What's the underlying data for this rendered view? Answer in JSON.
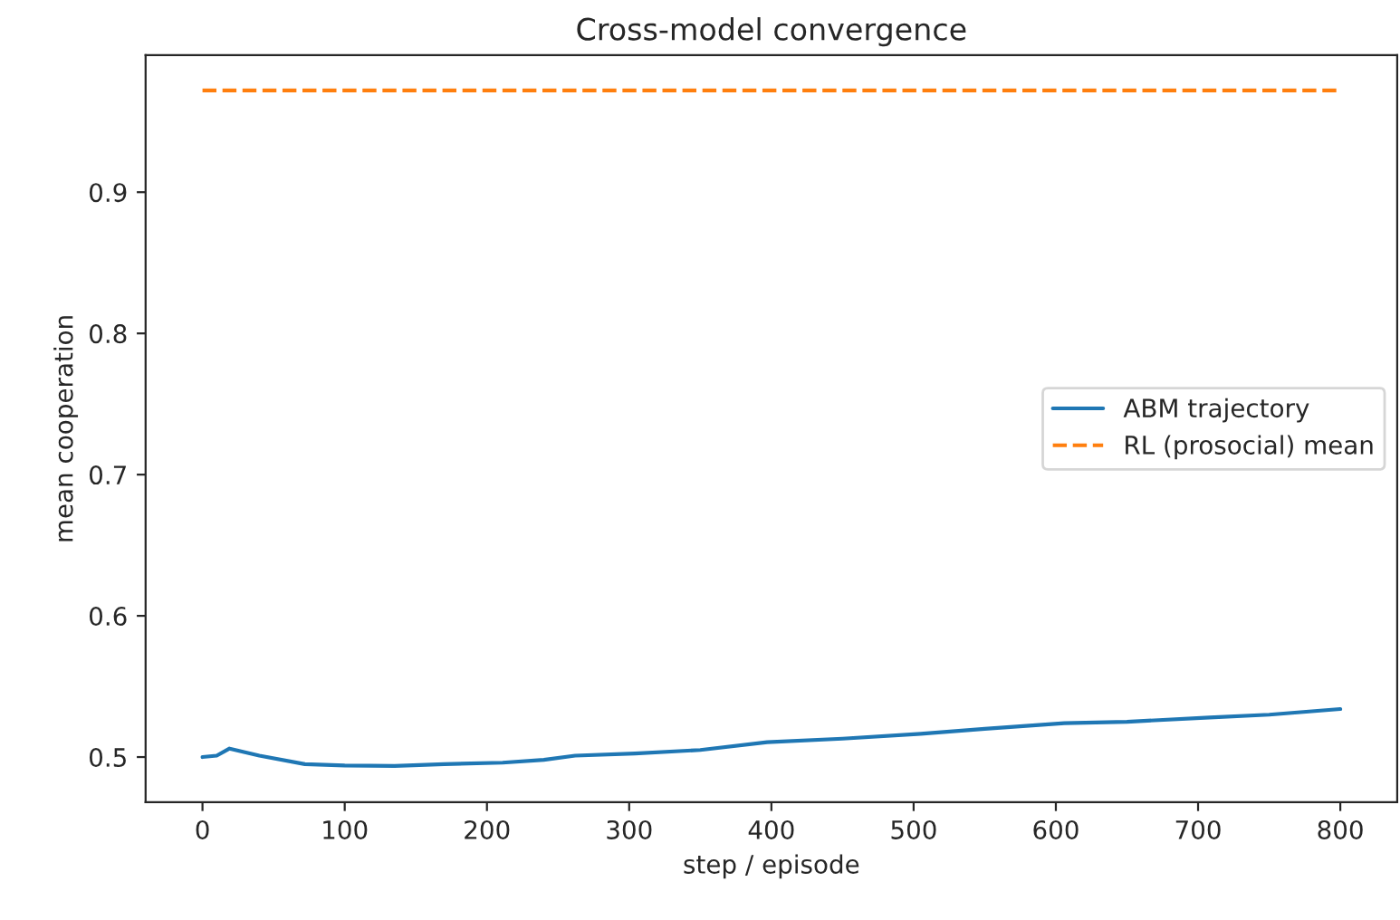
{
  "chart_data": {
    "type": "line",
    "title": "Cross-model convergence",
    "xlabel": "step / episode",
    "ylabel": "mean cooperation",
    "series": [
      {
        "name": "ABM trajectory",
        "color": "#1f77b4",
        "line_style": "solid",
        "x": [
          0,
          10,
          19,
          40,
          72,
          100,
          135,
          170,
          211,
          240,
          262,
          304,
          350,
          397,
          450,
          505,
          550,
          606,
          650,
          708,
          750,
          800
        ],
        "values": [
          0.5,
          0.501,
          0.506,
          0.501,
          0.495,
          0.494,
          0.4937,
          0.495,
          0.496,
          0.498,
          0.501,
          0.5025,
          0.505,
          0.5105,
          0.513,
          0.5165,
          0.52,
          0.524,
          0.525,
          0.528,
          0.53,
          0.534
        ]
      },
      {
        "name": "RL (prosocial) mean",
        "color": "#ff7f0e",
        "line_style": "dashed",
        "x": [
          0,
          800
        ],
        "values": [
          0.972,
          0.972
        ]
      }
    ],
    "xlim": [
      -40,
      840
    ],
    "ylim": [
      0.468,
      0.997
    ],
    "xticks": [
      0,
      100,
      200,
      300,
      400,
      500,
      600,
      700,
      800
    ],
    "yticks": [
      0.5,
      0.6,
      0.7,
      0.8,
      0.9
    ],
    "legend": "right",
    "grid": false
  }
}
